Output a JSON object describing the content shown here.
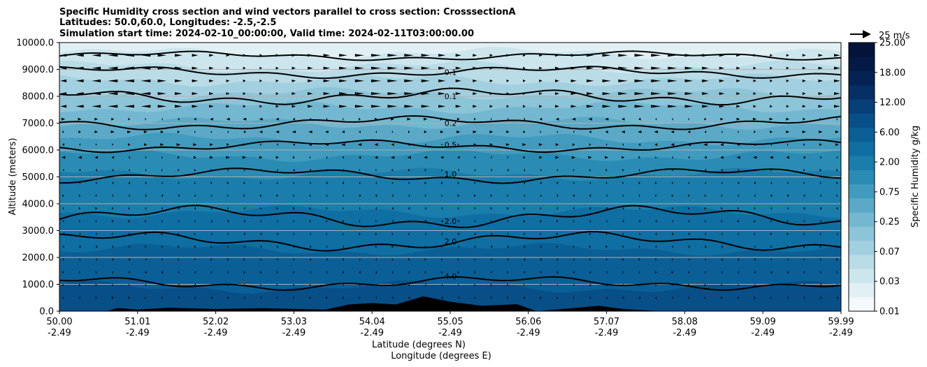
{
  "chart_data": {
    "type": "heatmap",
    "title": [
      "Specific Humidity cross section and wind vectors parallel to cross section: CrosssectionA",
      "Latitudes: 50.0,60.0, Longitudes: -2.5,-2.5",
      "Simulation start time: 2024-02-10_00:00:00, Valid time: 2024-02-11T03:00:00.00"
    ],
    "ylabel": "Altitude (meters)",
    "xlabel": [
      "Latitude (degrees N)",
      "Longitude (degrees E)"
    ],
    "ylim": [
      0,
      10000
    ],
    "y_ticks": [
      "0.0",
      "1000.0",
      "2000.0",
      "3000.0",
      "4000.0",
      "5000.0",
      "6000.0",
      "7000.0",
      "8000.0",
      "9000.0",
      "10000.0"
    ],
    "x_ticks": [
      {
        "lat": "50.00",
        "lon": "-2.49"
      },
      {
        "lat": "51.01",
        "lon": "-2.49"
      },
      {
        "lat": "52.02",
        "lon": "-2.49"
      },
      {
        "lat": "53.03",
        "lon": "-2.49"
      },
      {
        "lat": "54.04",
        "lon": "-2.49"
      },
      {
        "lat": "55.05",
        "lon": "-2.49"
      },
      {
        "lat": "56.06",
        "lon": "-2.49"
      },
      {
        "lat": "57.07",
        "lon": "-2.49"
      },
      {
        "lat": "58.08",
        "lon": "-2.49"
      },
      {
        "lat": "59.09",
        "lon": "-2.49"
      },
      {
        "lat": "59.99",
        "lon": "-2.49"
      }
    ],
    "grid": "horizontal",
    "colorbar": {
      "label": "Specific Humidity g/kg",
      "ticks": [
        "0.01",
        "0.03",
        "0.07",
        "0.25",
        "0.75",
        "2.00",
        "6.00",
        "12.00",
        "18.00",
        "25.00"
      ],
      "colors": [
        "#f4fafc",
        "#e1f0f4",
        "#cde6ee",
        "#b9dce7",
        "#a3d0e0",
        "#8cc4d8",
        "#74b7d0",
        "#5ba9c7",
        "#409bbe",
        "#2a8cb4",
        "#1a7dab",
        "#0f6ea2",
        "#0a5f96",
        "#084f88",
        "#073f78",
        "#062f66",
        "#052254",
        "#041a44",
        "#03133a"
      ]
    },
    "contour_labels": [
      "0.1",
      "0.1",
      "0.2",
      "0.5",
      "1.0",
      "2.0",
      "2.0",
      "4.0"
    ],
    "wind_key": "25 m/s",
    "terrain": [
      {
        "lat": 50.6,
        "alt": 0
      },
      {
        "lat": 50.75,
        "alt": 120
      },
      {
        "lat": 51.0,
        "alt": 60
      },
      {
        "lat": 51.4,
        "alt": 130
      },
      {
        "lat": 52.0,
        "alt": 80
      },
      {
        "lat": 52.6,
        "alt": 110
      },
      {
        "lat": 53.4,
        "alt": 60
      },
      {
        "lat": 53.7,
        "alt": 250
      },
      {
        "lat": 54.0,
        "alt": 300
      },
      {
        "lat": 54.3,
        "alt": 250
      },
      {
        "lat": 54.65,
        "alt": 550
      },
      {
        "lat": 55.0,
        "alt": 350
      },
      {
        "lat": 55.4,
        "alt": 200
      },
      {
        "lat": 55.85,
        "alt": 260
      },
      {
        "lat": 56.1,
        "alt": 0
      },
      {
        "lat": 56.9,
        "alt": 200
      },
      {
        "lat": 57.2,
        "alt": 80
      },
      {
        "lat": 57.7,
        "alt": 0
      }
    ]
  }
}
